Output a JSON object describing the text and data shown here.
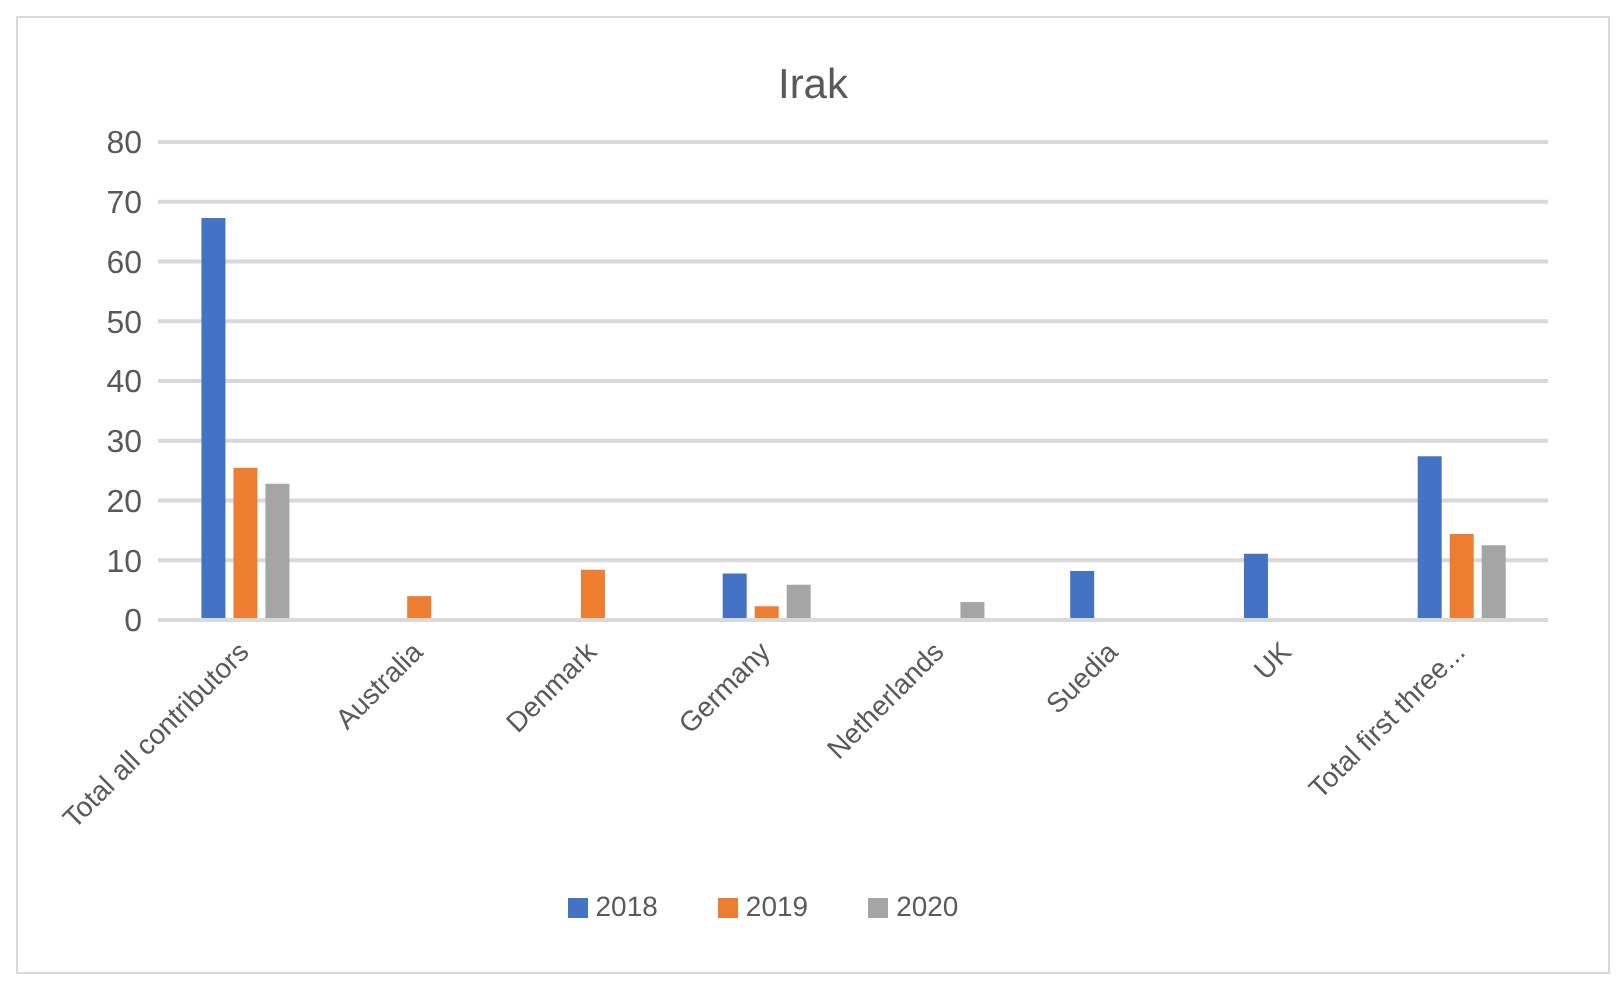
{
  "chart_data": {
    "type": "bar",
    "title": "Irak",
    "categories": [
      "Total all contributors",
      "Australia",
      "Denmark",
      "Germany",
      "Netherlands",
      "Suedia",
      "UK",
      "Total first three..."
    ],
    "series": [
      {
        "name": "2018",
        "color": "#4472c4",
        "values": [
          67.3,
          null,
          null,
          7.8,
          null,
          8.2,
          11.1,
          27.4
        ]
      },
      {
        "name": "2019",
        "color": "#ed7d31",
        "values": [
          25.5,
          4,
          8.4,
          2.3,
          null,
          null,
          null,
          14.4
        ]
      },
      {
        "name": "2020",
        "color": "#a5a5a5",
        "values": [
          22.8,
          null,
          null,
          5.9,
          3,
          null,
          null,
          12.5
        ]
      }
    ],
    "ylim": [
      0,
      80
    ],
    "yticks": [
      0,
      10,
      20,
      30,
      40,
      50,
      60,
      70,
      80
    ],
    "grid": "y",
    "legend": "bottom"
  }
}
